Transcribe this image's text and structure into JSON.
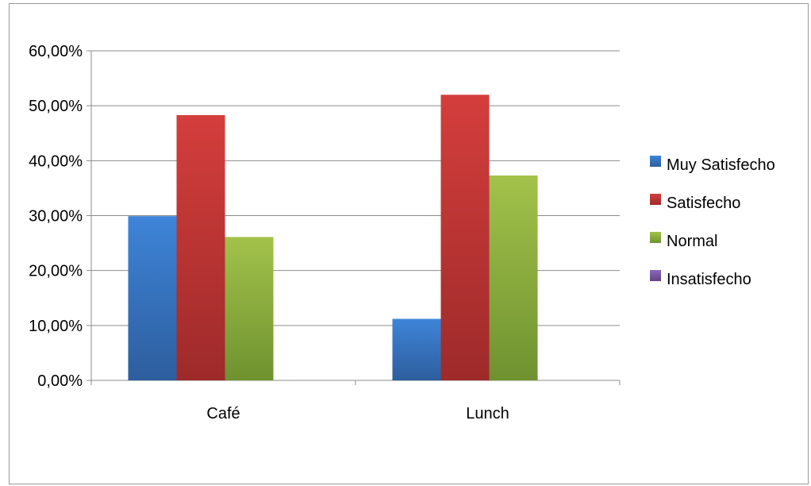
{
  "chart_data": {
    "type": "bar",
    "categories": [
      "Café",
      "Lunch"
    ],
    "series": [
      {
        "name": "Muy Satisfecho",
        "values": [
          29.9,
          11.2
        ],
        "color": "#3b78c6"
      },
      {
        "name": "Satisfecho",
        "values": [
          48.3,
          52.0
        ],
        "color": "#c93535"
      },
      {
        "name": "Normal",
        "values": [
          26.1,
          37.3
        ],
        "color": "#8fb43a"
      },
      {
        "name": "Insatisfecho",
        "values": [
          0,
          0
        ],
        "color": "#7b5aa6"
      }
    ],
    "ylim": [
      0,
      60
    ],
    "yticks": [
      "0,00%",
      "10,00%",
      "20,00%",
      "30,00%",
      "40,00%",
      "50,00%",
      "60,00%"
    ],
    "grid": true,
    "legend_position": "right",
    "title": "",
    "xlabel": "",
    "ylabel": ""
  }
}
